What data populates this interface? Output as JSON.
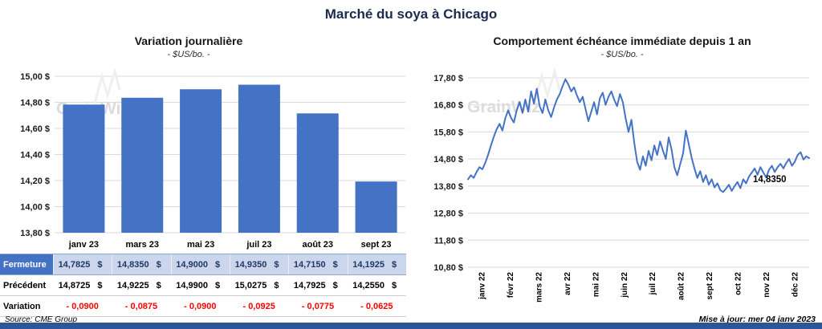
{
  "page": {
    "title": "Marché du soya à Chicago",
    "watermark": "GrainWiz",
    "source": "Source: CME Group",
    "updated": "Mise à jour: mer 04 janv 2023"
  },
  "colors": {
    "accent_blue": "#4472C4",
    "table_label_bg": "#4472C4",
    "table_value_bg": "#CBD6EC",
    "navy_text": "#1F3864",
    "variation_red": "#FF0000",
    "gridline": "#D9D9D9",
    "bottom_bar": "#2F5597",
    "watermark_gray": "#DCDCDC"
  },
  "table": {
    "rows": [
      {
        "label": "Fermeture",
        "suffix": "$",
        "values": [
          "14,7825",
          "14,8350",
          "14,9000",
          "14,9350",
          "14,7150",
          "14,1925"
        ]
      },
      {
        "label": "Précédent",
        "suffix": "$",
        "values": [
          "14,8725",
          "14,9225",
          "14,9900",
          "15,0275",
          "14,7925",
          "14,2550"
        ]
      },
      {
        "label": "Variation",
        "suffix": "",
        "values": [
          "- 0,0900",
          "- 0,0875",
          "- 0,0900",
          "- 0,0925",
          "- 0,0775",
          "- 0,0625"
        ]
      }
    ]
  },
  "chart_data": [
    {
      "type": "bar",
      "title": "Variation journalière",
      "subtitle": "- $US/bo. -",
      "categories": [
        "janv 23",
        "mars 23",
        "mai 23",
        "juil 23",
        "août 23",
        "sept 23"
      ],
      "values": [
        14.7825,
        14.835,
        14.9,
        14.935,
        14.715,
        14.1925
      ],
      "ylim": [
        13.8,
        15.0
      ],
      "ytick_values": [
        15.0,
        14.8,
        14.6,
        14.4,
        14.2,
        14.0,
        13.8
      ],
      "ytick_labels": [
        "15,00 $",
        "14,80 $",
        "14,60 $",
        "14,40 $",
        "14,20 $",
        "14,00 $",
        "13,80 $"
      ],
      "grid": "horizontal"
    },
    {
      "type": "line",
      "title": "Comportement échéance immédiate depuis 1 an",
      "subtitle": "- $US/bo. -",
      "xtick_labels": [
        "janv 22",
        "févr 22",
        "mars 22",
        "avr 22",
        "mai 22",
        "juin 22",
        "juil 22",
        "août 22",
        "sept 22",
        "oct 22",
        "nov 22",
        "déc 22"
      ],
      "values": [
        14.05,
        14.2,
        14.1,
        14.32,
        14.5,
        14.42,
        14.65,
        14.95,
        15.3,
        15.62,
        15.9,
        16.1,
        15.85,
        16.3,
        16.6,
        16.32,
        16.15,
        16.6,
        16.9,
        16.5,
        17.0,
        16.55,
        17.3,
        16.85,
        17.4,
        16.75,
        16.5,
        17.0,
        16.6,
        16.35,
        16.7,
        17.0,
        17.2,
        17.5,
        17.75,
        17.55,
        17.3,
        17.45,
        17.15,
        16.9,
        17.1,
        16.65,
        16.2,
        16.55,
        16.9,
        16.45,
        17.05,
        17.25,
        16.8,
        17.1,
        17.3,
        17.0,
        16.75,
        17.2,
        16.9,
        16.3,
        15.8,
        16.25,
        15.4,
        14.7,
        14.4,
        14.9,
        14.55,
        15.1,
        14.75,
        15.3,
        14.95,
        15.45,
        15.1,
        14.8,
        15.6,
        15.15,
        14.5,
        14.2,
        14.6,
        15.0,
        15.85,
        15.35,
        14.85,
        14.45,
        14.1,
        14.35,
        13.95,
        14.2,
        13.85,
        14.05,
        13.75,
        13.9,
        13.65,
        13.58,
        13.7,
        13.85,
        13.62,
        13.8,
        13.95,
        13.72,
        14.05,
        13.9,
        14.15,
        14.3,
        14.45,
        14.22,
        14.5,
        14.3,
        14.12,
        14.4,
        14.55,
        14.32,
        14.5,
        14.62,
        14.45,
        14.65,
        14.8,
        14.55,
        14.7,
        14.95,
        15.05,
        14.78,
        14.9,
        14.835
      ],
      "ylim": [
        10.8,
        17.8
      ],
      "ytick_values": [
        17.8,
        16.8,
        15.8,
        14.8,
        13.8,
        12.8,
        11.8,
        10.8
      ],
      "ytick_labels": [
        "17,80 $",
        "16,80 $",
        "15,80 $",
        "14,80 $",
        "13,80 $",
        "12,80 $",
        "11,80 $",
        "10,80 $"
      ],
      "annotation": "14,8350",
      "grid": "horizontal"
    }
  ]
}
